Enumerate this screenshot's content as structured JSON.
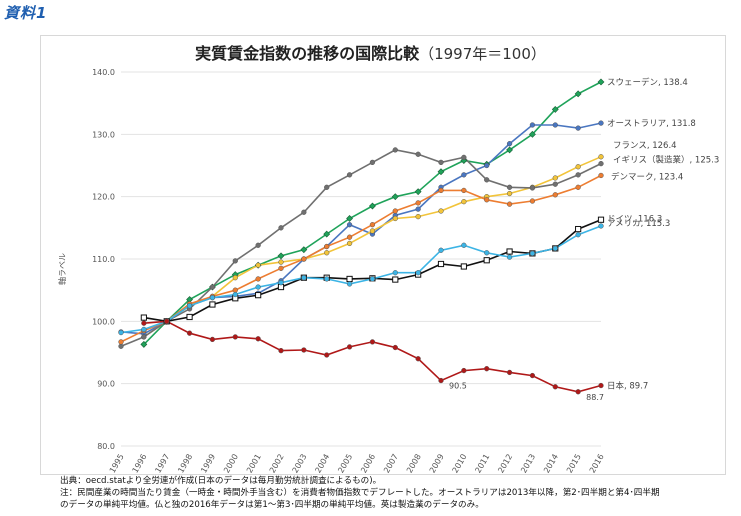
{
  "badge": "資料1",
  "title": "実質賃金指数の推移の国際比較",
  "subtitle": "（1997年＝100）",
  "notes": [
    "出典：oecd.statより全労連が作成(日本のデータは毎月勤労統計調査によるもの)。",
    "注：民間産業の時間当たり賃金（一時金・時間外手当含む）を消費者物価指数でデフレートした。オーストラリアは2013年以降，第2･四半期と第4･四半期",
    "のデータの単純平均値。仏と独の2016年データは第1～第3･四半期の単純平均値。英は製造業のデータのみ。"
  ],
  "chart_data": {
    "type": "line",
    "title": "実質賃金指数の推移の国際比較（1997年＝100）",
    "xlabel": "",
    "ylabel": "軸ラベル",
    "x": [
      "1995",
      "1996",
      "1997",
      "1998",
      "1999",
      "2000",
      "2001",
      "2002",
      "2003",
      "2004",
      "2005",
      "2006",
      "2007",
      "2008",
      "2009",
      "2010",
      "2011",
      "2012",
      "2013",
      "2014",
      "2015",
      "2016"
    ],
    "ylim": [
      80,
      140
    ],
    "yticks": [
      80,
      90,
      100,
      110,
      120,
      130,
      140
    ],
    "ytick_labels": [
      "80.0",
      "90.0",
      "100.0",
      "110.0",
      "120.0",
      "130.0",
      "140.0"
    ],
    "grid": true,
    "series": [
      {
        "name": "スウェーデン",
        "end_label": "スウェーデン, 138.4",
        "color": "#1fa35a",
        "marker": "diamond",
        "values": [
          null,
          96.3,
          100,
          103.5,
          105.5,
          107.5,
          109.0,
          110.5,
          111.5,
          114.0,
          116.5,
          118.5,
          120.0,
          120.8,
          124.0,
          125.8,
          125.2,
          127.5,
          130.0,
          134.0,
          136.5,
          138.4
        ]
      },
      {
        "name": "オーストラリア",
        "end_label": "オーストラリア, 131.8",
        "color": "#4a76c0",
        "marker": "circle",
        "values": [
          98.3,
          98.0,
          100,
          102.5,
          103.8,
          104.0,
          104.5,
          106.5,
          110.0,
          112.0,
          115.5,
          114.0,
          117.0,
          118.0,
          121.5,
          123.5,
          125.0,
          128.5,
          131.5,
          131.5,
          131.0,
          131.8
        ]
      },
      {
        "name": "フランス",
        "end_label": "フランス, 126.4",
        "color": "#f2c43a",
        "marker": "circle",
        "values": [
          null,
          97.5,
          100,
          102.5,
          104.0,
          107.0,
          109.0,
          109.5,
          110.0,
          111.0,
          112.5,
          114.5,
          116.5,
          116.8,
          117.7,
          119.2,
          120.0,
          120.5,
          121.5,
          123.0,
          124.8,
          126.4
        ]
      },
      {
        "name": "イギリス（製造業）",
        "end_label": "イギリス（製造業）, 125.3",
        "color": "#707070",
        "marker": "circle",
        "values": [
          96.0,
          97.5,
          100,
          102.0,
          105.5,
          109.7,
          112.2,
          115.0,
          117.5,
          121.5,
          123.5,
          125.5,
          127.5,
          126.8,
          125.5,
          126.3,
          122.7,
          121.5,
          121.4,
          122.0,
          123.5,
          125.3
        ]
      },
      {
        "name": "デンマーク",
        "end_label": "デンマーク, 123.4",
        "color": "#ed7d31",
        "marker": "circle",
        "values": [
          96.7,
          98.5,
          100,
          102.8,
          104.0,
          105.0,
          106.8,
          108.5,
          110.0,
          112.0,
          113.5,
          115.5,
          117.7,
          119.0,
          121.0,
          121.0,
          119.5,
          118.8,
          119.3,
          120.3,
          121.5,
          123.4
        ]
      },
      {
        "name": "ドイツ",
        "end_label": "ドイツ, 116.3",
        "color": "#111111",
        "marker": "square",
        "values": [
          null,
          100.6,
          100,
          100.7,
          102.7,
          103.7,
          104.2,
          105.5,
          107.0,
          107.0,
          106.8,
          106.9,
          106.7,
          107.5,
          109.2,
          108.8,
          109.8,
          111.2,
          110.9,
          111.7,
          114.8,
          116.3
        ]
      },
      {
        "name": "アメリカ",
        "end_label": "アメリカ, 115.3",
        "color": "#3cb4e5",
        "marker": "circle",
        "values": [
          98.2,
          98.7,
          100,
          102.5,
          103.8,
          104.3,
          105.5,
          106.2,
          107.0,
          106.8,
          106.0,
          106.8,
          107.8,
          107.8,
          111.4,
          112.2,
          111.0,
          110.3,
          110.9,
          111.7,
          113.9,
          115.3
        ]
      },
      {
        "name": "日本",
        "end_label": "日本, 89.7",
        "color": "#b01818",
        "marker": "circle",
        "values": [
          null,
          99.7,
          100,
          98.1,
          97.1,
          97.5,
          97.2,
          95.3,
          95.4,
          94.6,
          95.9,
          96.7,
          95.8,
          94.0,
          90.5,
          92.1,
          92.4,
          91.8,
          91.3,
          89.5,
          88.7,
          89.7
        ]
      }
    ],
    "annotations": [
      {
        "text": "90.5",
        "x": "2009",
        "y": 90.5,
        "series": "日本"
      },
      {
        "text": "88.7",
        "x": "2015",
        "y": 88.7,
        "series": "日本"
      }
    ]
  }
}
